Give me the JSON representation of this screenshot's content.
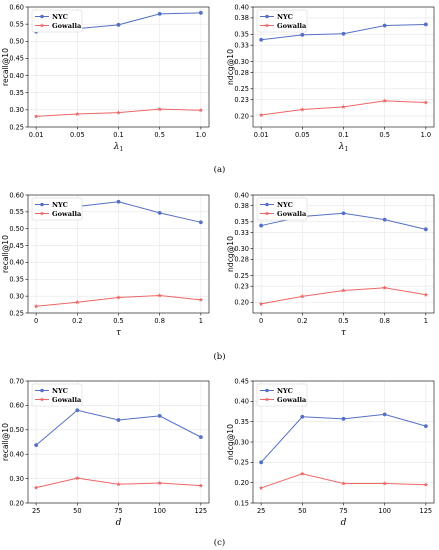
{
  "colors": {
    "nyc": "#5470c6",
    "gowalla": "#ee6666"
  },
  "panel_captions": [
    "(a)",
    "(b)",
    "(c)"
  ],
  "chart_data": [
    {
      "type": "line",
      "panel": "(a)",
      "side": "left",
      "x": [
        "0.01",
        "0.05",
        "0.1",
        "0.5",
        "1.0"
      ],
      "xlabel": "λ1",
      "ylabel": "recall@10",
      "ylim": [
        0.25,
        0.6
      ],
      "yticks": [
        "0.25",
        "0.30",
        "0.35",
        "0.40",
        "0.45",
        "0.50",
        "0.55",
        "0.60"
      ],
      "grid": true,
      "legend": "top-left",
      "series": [
        {
          "name": "NYC",
          "values": [
            0.528,
            0.537,
            0.548,
            0.58,
            0.583
          ]
        },
        {
          "name": "Gowalla",
          "values": [
            0.281,
            0.288,
            0.292,
            0.302,
            0.299
          ]
        }
      ]
    },
    {
      "type": "line",
      "panel": "(a)",
      "side": "right",
      "x": [
        "0.01",
        "0.05",
        "0.1",
        "0.5",
        "1.0"
      ],
      "xlabel": "λ1",
      "ylabel": "ndcg@10",
      "ylim": [
        0.18,
        0.4
      ],
      "yticks": [
        "0.20",
        "0.23",
        "0.25",
        "0.28",
        "0.30",
        "0.33",
        "0.35",
        "0.38",
        "0.40"
      ],
      "grid": true,
      "legend": "top-left",
      "series": [
        {
          "name": "NYC",
          "values": [
            0.34,
            0.349,
            0.351,
            0.366,
            0.368
          ]
        },
        {
          "name": "Gowalla",
          "values": [
            0.202,
            0.212,
            0.217,
            0.228,
            0.225
          ]
        }
      ]
    },
    {
      "type": "line",
      "panel": "(b)",
      "side": "left",
      "x": [
        "0",
        "0.2",
        "0.5",
        "0.8",
        "1"
      ],
      "xlabel": "τ",
      "ylabel": "recall@10",
      "ylim": [
        0.25,
        0.6
      ],
      "yticks": [
        "0.25",
        "0.30",
        "0.35",
        "0.40",
        "0.45",
        "0.50",
        "0.55",
        "0.60"
      ],
      "grid": true,
      "legend": "top-left",
      "series": [
        {
          "name": "NYC",
          "values": [
            0.535,
            0.566,
            0.58,
            0.547,
            0.519
          ]
        },
        {
          "name": "Gowalla",
          "values": [
            0.27,
            0.282,
            0.296,
            0.302,
            0.289
          ]
        }
      ]
    },
    {
      "type": "line",
      "panel": "(b)",
      "side": "right",
      "x": [
        "0",
        "0.2",
        "0.5",
        "0.8",
        "1"
      ],
      "xlabel": "τ",
      "ylabel": "ndcg@10",
      "ylim": [
        0.18,
        0.4
      ],
      "yticks": [
        "0.20",
        "0.23",
        "0.25",
        "0.28",
        "0.30",
        "0.33",
        "0.35",
        "0.38",
        "0.40"
      ],
      "grid": true,
      "legend": "top-left",
      "series": [
        {
          "name": "NYC",
          "values": [
            0.343,
            0.36,
            0.366,
            0.354,
            0.336
          ]
        },
        {
          "name": "Gowalla",
          "values": [
            0.197,
            0.211,
            0.222,
            0.227,
            0.214
          ]
        }
      ]
    },
    {
      "type": "line",
      "panel": "(c)",
      "side": "left",
      "x": [
        "25",
        "50",
        "75",
        "100",
        "125"
      ],
      "xlabel": "d",
      "ylabel": "recall@10",
      "ylim": [
        0.2,
        0.7
      ],
      "yticks": [
        "0.20",
        "0.30",
        "0.40",
        "0.50",
        "0.60",
        "0.70"
      ],
      "grid": true,
      "legend": "top-left",
      "series": [
        {
          "name": "NYC",
          "values": [
            0.437,
            0.58,
            0.54,
            0.557,
            0.47
          ]
        },
        {
          "name": "Gowalla",
          "values": [
            0.263,
            0.302,
            0.277,
            0.282,
            0.271
          ]
        }
      ]
    },
    {
      "type": "line",
      "panel": "(c)",
      "side": "right",
      "x": [
        "25",
        "50",
        "75",
        "100",
        "125"
      ],
      "xlabel": "d",
      "ylabel": "ndcg@10",
      "ylim": [
        0.15,
        0.45
      ],
      "yticks": [
        "0.15",
        "0.20",
        "0.25",
        "0.30",
        "0.35",
        "0.40",
        "0.45"
      ],
      "grid": true,
      "legend": "top-left",
      "series": [
        {
          "name": "NYC",
          "values": [
            0.25,
            0.362,
            0.357,
            0.368,
            0.339
          ]
        },
        {
          "name": "Gowalla",
          "values": [
            0.187,
            0.222,
            0.198,
            0.198,
            0.195
          ]
        }
      ]
    }
  ]
}
